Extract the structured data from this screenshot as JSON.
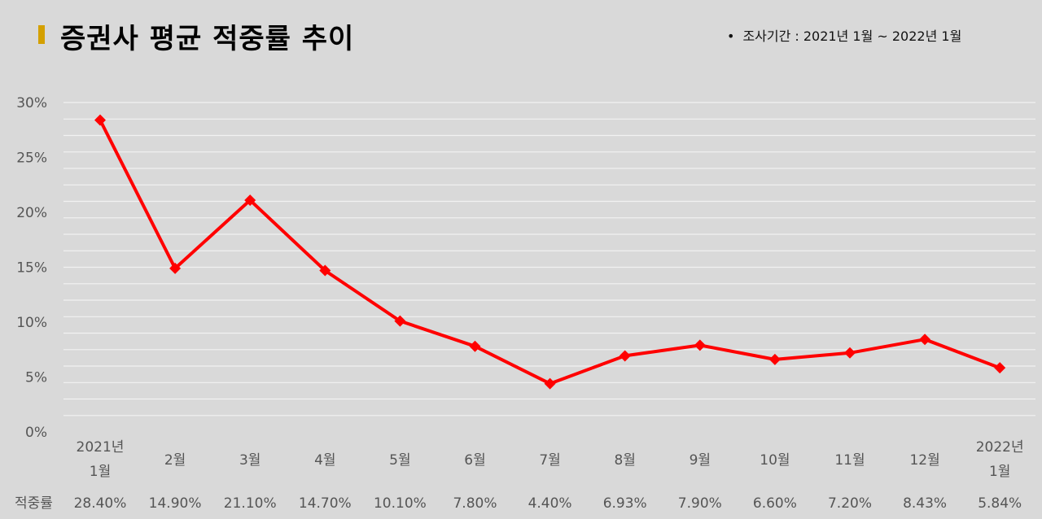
{
  "title": "증권사 평균 적중률 추이",
  "period_note": "조사기간 : 2021년 1월 ~ 2022년 1월",
  "colors": {
    "background": "#d9d9d9",
    "title_accent": "#d4a000",
    "line": "#ff0000",
    "grid": "#f2f2f2",
    "axis_text": "#555555"
  },
  "chart_data": {
    "type": "line",
    "title": "증권사 평균 적중률 추이",
    "categories": [
      [
        "2021년",
        "1월"
      ],
      [
        "2월"
      ],
      [
        "3월"
      ],
      [
        "4월"
      ],
      [
        "5월"
      ],
      [
        "6월"
      ],
      [
        "7월"
      ],
      [
        "8월"
      ],
      [
        "9월"
      ],
      [
        "10월"
      ],
      [
        "11월"
      ],
      [
        "12월"
      ],
      [
        "2022년",
        "1월"
      ]
    ],
    "series": [
      {
        "name": "적중률",
        "values": [
          28.4,
          14.9,
          21.1,
          14.7,
          10.1,
          7.8,
          4.4,
          6.93,
          7.9,
          6.6,
          7.2,
          8.43,
          5.84
        ],
        "value_labels": [
          "28.40%",
          "14.90%",
          "21.10%",
          "14.70%",
          "10.10%",
          "7.80%",
          "4.40%",
          "6.93%",
          "7.90%",
          "6.60%",
          "7.20%",
          "8.43%",
          "5.84%"
        ]
      }
    ],
    "table_row_label": "적중률",
    "yticks": [
      "0%",
      "5%",
      "10%",
      "15%",
      "20%",
      "25%",
      "30%"
    ],
    "ytick_values": [
      0,
      5,
      10,
      15,
      20,
      25,
      30
    ],
    "minor_grid_step": 1.5,
    "ylim": [
      0,
      30
    ],
    "grid": true,
    "legend": "none",
    "marker": "diamond"
  }
}
